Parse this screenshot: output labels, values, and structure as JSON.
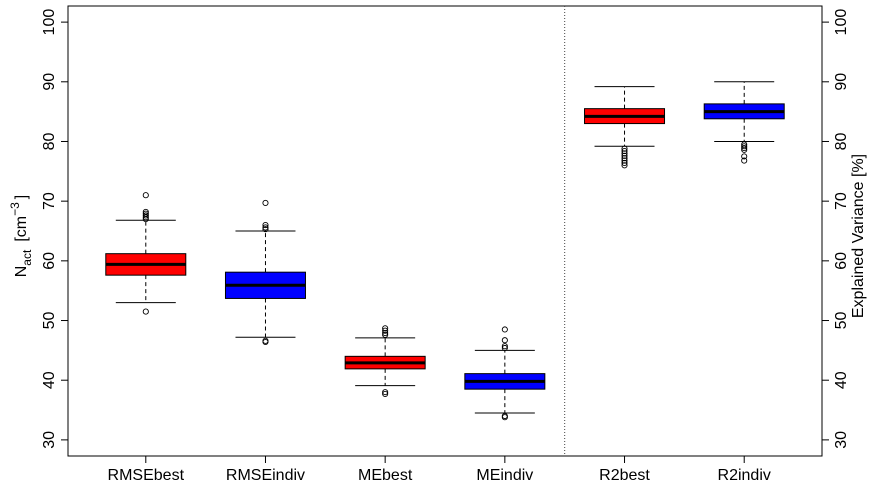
{
  "chart_data": {
    "type": "boxplot",
    "categories": [
      "RMSEbest",
      "RMSEindiv",
      "MEbest",
      "MEindiv",
      "R2best",
      "R2indiv"
    ],
    "colors": [
      "#ff0000",
      "#0000ff",
      "#ff0000",
      "#0000ff",
      "#ff0000",
      "#0000ff"
    ],
    "boxes": [
      {
        "whisker_low": 53.0,
        "q1": 57.6,
        "median": 59.4,
        "q3": 61.2,
        "whisker_high": 66.8,
        "outliers": [
          51.5,
          67.0,
          67.3,
          67.6,
          67.9,
          68.2,
          71.0
        ]
      },
      {
        "whisker_low": 47.2,
        "q1": 53.7,
        "median": 55.9,
        "q3": 58.1,
        "whisker_high": 65.0,
        "outliers": [
          46.6,
          46.4,
          65.3,
          65.6,
          66.0,
          69.7
        ]
      },
      {
        "whisker_low": 39.1,
        "q1": 41.9,
        "median": 42.9,
        "q3": 44.0,
        "whisker_high": 47.1,
        "outliers": [
          38.0,
          37.7,
          47.6,
          47.9,
          48.3,
          48.7
        ]
      },
      {
        "whisker_low": 34.5,
        "q1": 38.5,
        "median": 39.8,
        "q3": 41.1,
        "whisker_high": 45.0,
        "outliers": [
          34.0,
          33.8,
          45.4,
          45.7,
          46.7,
          48.5
        ]
      },
      {
        "whisker_low": 79.2,
        "q1": 83.0,
        "median": 84.2,
        "q3": 85.5,
        "whisker_high": 89.2,
        "outliers": [
          78.8,
          78.4,
          78.0,
          77.6,
          77.2,
          76.8,
          76.4,
          76.0
        ]
      },
      {
        "whisker_low": 80.0,
        "q1": 83.8,
        "median": 85.0,
        "q3": 86.3,
        "whisker_high": 90.0,
        "outliers": [
          79.5,
          79.2,
          78.9,
          78.6,
          77.5,
          76.8
        ]
      }
    ],
    "ylim": [
      27.3,
      102.7
    ],
    "yticks": [
      30,
      40,
      50,
      60,
      70,
      80,
      90,
      100
    ],
    "ylabel_left_main": "N",
    "ylabel_left_sub": "act",
    "ylabel_left_unit": "[cm",
    "ylabel_left_exp": "−3",
    "ylabel_left_close": "]",
    "ylabel_right": "Explained Variance [%]",
    "separator_after_index": 3,
    "grid": false,
    "legend": "none"
  }
}
